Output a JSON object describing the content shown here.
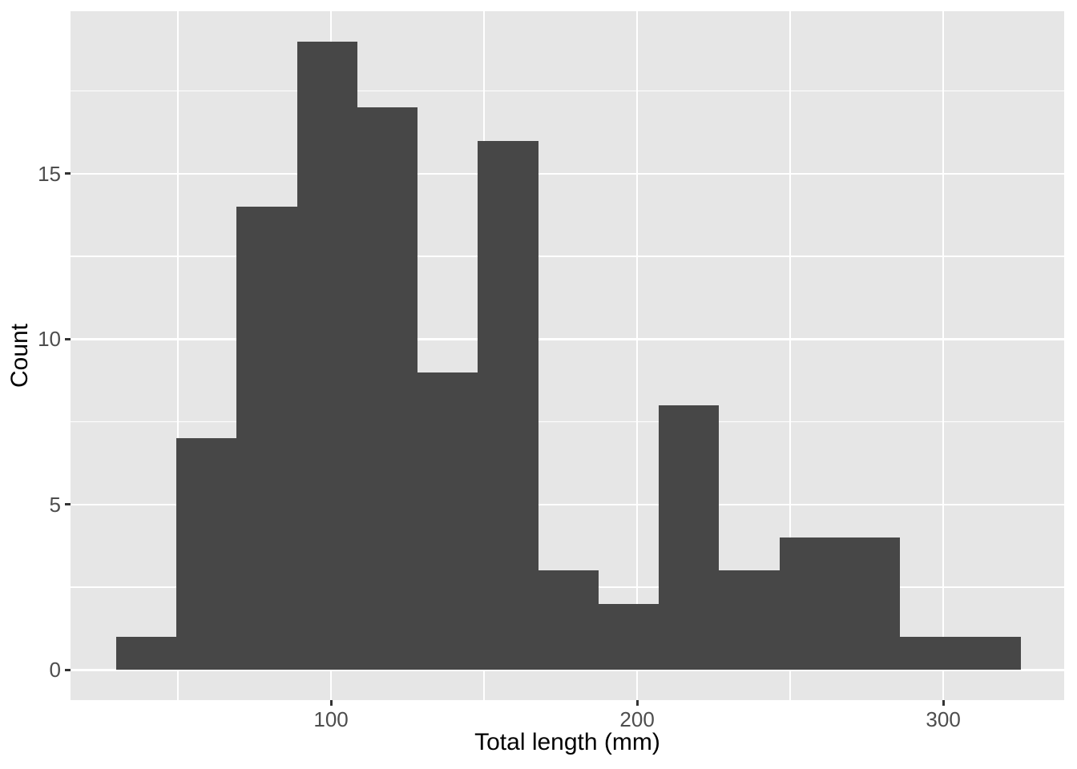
{
  "style": {
    "figure_background": "#ffffff",
    "panel_background": "#e6e6e6",
    "grid_color": "#ffffff",
    "bar_fill": "#474747",
    "tick_label_color": "#4d4d4d",
    "tick_mark_color": "#333333",
    "axis_title_color": "#000000"
  },
  "chart_data": {
    "type": "bar",
    "subtype": "histogram",
    "title": "",
    "xlabel": "Total length (mm)",
    "ylabel": "Count",
    "legend": false,
    "grid": true,
    "x_domain": [
      14.9,
      339.5
    ],
    "y_domain": [
      -0.91,
      19.91
    ],
    "x_major_ticks": [
      100,
      200,
      300
    ],
    "x_minor_ticks": [
      50,
      150,
      250
    ],
    "y_major_ticks": [
      0,
      5,
      10,
      15
    ],
    "y_minor_ticks": [
      2.5,
      7.5,
      12.5,
      17.5
    ],
    "bin_start": 29.8,
    "bin_width": 19.7,
    "counts": [
      1,
      7,
      14,
      19,
      17,
      9,
      16,
      3,
      2,
      8,
      3,
      4,
      4,
      1,
      1
    ],
    "bins": [
      {
        "x0": 29.8,
        "x1": 49.5,
        "count": 1
      },
      {
        "x0": 49.5,
        "x1": 69.2,
        "count": 7
      },
      {
        "x0": 69.2,
        "x1": 88.9,
        "count": 14
      },
      {
        "x0": 88.9,
        "x1": 108.6,
        "count": 19
      },
      {
        "x0": 108.6,
        "x1": 128.3,
        "count": 17
      },
      {
        "x0": 128.3,
        "x1": 148.0,
        "count": 9
      },
      {
        "x0": 148.0,
        "x1": 167.7,
        "count": 16
      },
      {
        "x0": 167.7,
        "x1": 187.4,
        "count": 3
      },
      {
        "x0": 187.4,
        "x1": 207.1,
        "count": 2
      },
      {
        "x0": 207.1,
        "x1": 226.8,
        "count": 8
      },
      {
        "x0": 226.8,
        "x1": 246.5,
        "count": 3
      },
      {
        "x0": 246.5,
        "x1": 266.2,
        "count": 4
      },
      {
        "x0": 266.2,
        "x1": 285.9,
        "count": 4
      },
      {
        "x0": 285.9,
        "x1": 305.6,
        "count": 1
      },
      {
        "x0": 305.6,
        "x1": 325.3,
        "count": 1
      }
    ]
  }
}
